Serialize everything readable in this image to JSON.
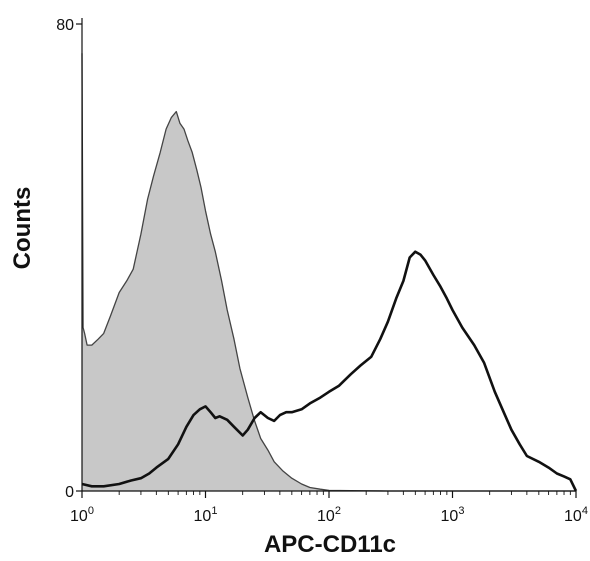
{
  "chart_data": {
    "type": "area",
    "xlabel": "APC-CD11c",
    "ylabel": "Counts",
    "xscale": "log",
    "xlim": [
      1,
      10000
    ],
    "ylim": [
      0,
      80
    ],
    "x_ticks": [
      {
        "value": 1,
        "base": "10",
        "exp": "0"
      },
      {
        "value": 10,
        "base": "10",
        "exp": "1"
      },
      {
        "value": 100,
        "base": "10",
        "exp": "2"
      },
      {
        "value": 1000,
        "base": "10",
        "exp": "3"
      },
      {
        "value": 10000,
        "base": "10",
        "exp": "4"
      }
    ],
    "y_ticks": [
      {
        "value": 0,
        "label": "0"
      },
      {
        "value": 80,
        "label": "80"
      }
    ],
    "grid": false,
    "series": [
      {
        "style": "filled",
        "fill": "#c8c8c8",
        "stroke": "#444444",
        "x": [
          1.0,
          1.02,
          1.05,
          1.1,
          1.2,
          1.35,
          1.5,
          1.7,
          2.0,
          2.3,
          2.6,
          3.0,
          3.4,
          3.8,
          4.3,
          4.8,
          5.3,
          5.8,
          6.2,
          6.7,
          7.2,
          7.8,
          8.5,
          9.2,
          10.0,
          11.0,
          12.0,
          13.5,
          15.0,
          17.0,
          19.0,
          22.0,
          25.0,
          28.0,
          32.0,
          36.0,
          42.0,
          50.0,
          60.0,
          70.0,
          85.0,
          100.0,
          150.0,
          300.0,
          1000.0,
          10000.0
        ],
        "values": [
          75,
          28,
          27,
          25,
          25,
          26,
          27,
          30,
          34,
          36,
          38,
          44,
          50,
          54,
          58,
          62,
          64,
          65,
          63,
          62,
          60,
          58,
          55,
          52,
          48,
          44,
          41,
          36,
          31,
          26,
          21,
          16,
          12,
          9,
          7,
          5,
          3.5,
          2.2,
          1.2,
          0.6,
          0.3,
          0.1,
          0.05,
          0,
          0,
          0
        ]
      },
      {
        "style": "outline",
        "stroke": "#111111",
        "x": [
          1.0,
          1.2,
          1.5,
          2.0,
          2.5,
          3.0,
          3.5,
          4.0,
          5.0,
          6.0,
          7.0,
          8.0,
          9.0,
          10.0,
          11.0,
          12.0,
          13.0,
          15.0,
          17.0,
          20.0,
          22.0,
          25.0,
          28.0,
          32.0,
          36.0,
          40.0,
          45.0,
          50.0,
          60.0,
          70.0,
          85.0,
          100.0,
          120.0,
          150.0,
          180.0,
          220.0,
          260.0,
          300.0,
          350.0,
          400.0,
          450.0,
          500.0,
          550.0,
          600.0,
          700.0,
          800.0,
          900.0,
          1000.0,
          1200.0,
          1500.0,
          1800.0,
          2200.0,
          2600.0,
          3000.0,
          3500.0,
          4000.0,
          5000.0,
          6000.0,
          7000.0,
          8000.0,
          9000.0,
          10000.0
        ],
        "values": [
          1.2,
          0.8,
          0.8,
          1.2,
          1.8,
          2.2,
          3.0,
          4.0,
          5.5,
          8.0,
          11.0,
          13.0,
          14.0,
          14.5,
          13.5,
          12.5,
          12.8,
          12.2,
          11.0,
          9.5,
          10.5,
          12.5,
          13.5,
          12.5,
          12.0,
          13.0,
          13.5,
          13.5,
          14.0,
          15.0,
          16.0,
          17.0,
          18.0,
          20.0,
          21.5,
          23.0,
          26.0,
          29.0,
          33.0,
          36.0,
          40.0,
          41.0,
          40.5,
          39.5,
          37.0,
          35.0,
          33.0,
          31.0,
          28.0,
          25.0,
          22.0,
          17.0,
          13.5,
          10.5,
          8.0,
          6.0,
          5.0,
          4.0,
          3.0,
          2.5,
          2.0,
          0
        ]
      }
    ]
  }
}
